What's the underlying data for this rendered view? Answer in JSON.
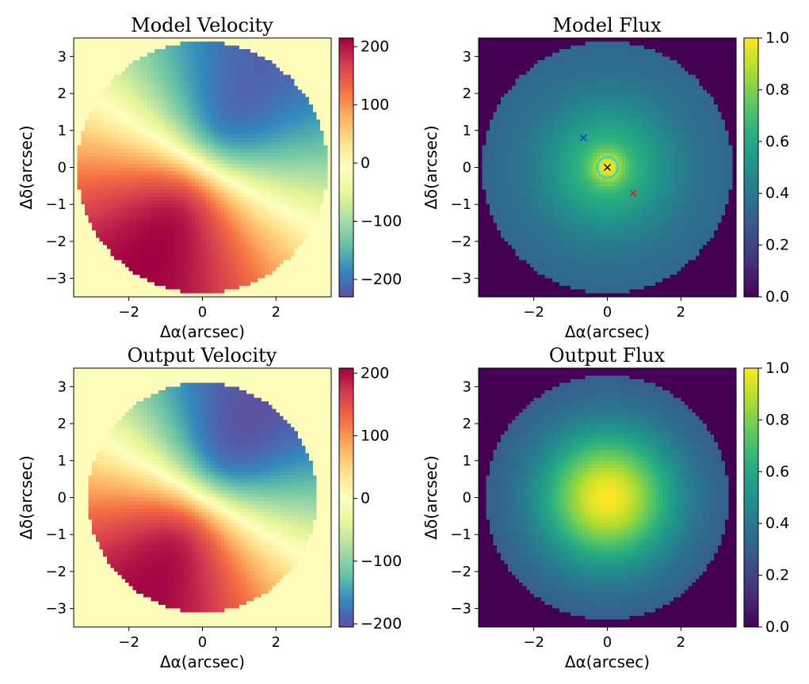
{
  "chart_data": [
    {
      "type": "heatmap",
      "title": "Model Velocity",
      "xlabel": "Δα(arcsec)",
      "ylabel": "Δδ(arcsec)",
      "xlim": [
        -3.5,
        3.5
      ],
      "ylim": [
        -3.5,
        3.5
      ],
      "xticks": [
        "−2",
        "0",
        "2"
      ],
      "yticks": [
        "3",
        "2",
        "1",
        "0",
        "−1",
        "−2",
        "−3"
      ],
      "field": "velocity",
      "disk_radius_arcsec": 3.4,
      "velocity_amplitude": 215,
      "position_angle_deg": 60,
      "colormap": "Spectral_r",
      "colorbar": {
        "min": -230,
        "max": 215,
        "ticks": [
          "200",
          "100",
          "0",
          "−100",
          "−200"
        ],
        "tick_values": [
          200,
          100,
          0,
          -100,
          -200
        ]
      },
      "background_color": "#FEFCBB",
      "markers": []
    },
    {
      "type": "heatmap",
      "title": "Model Flux",
      "xlabel": "Δα(arcsec)",
      "ylabel": "Δδ(arcsec)",
      "xlim": [
        -3.5,
        3.5
      ],
      "ylim": [
        -3.5,
        3.5
      ],
      "xticks": [
        "−2",
        "0",
        "2"
      ],
      "yticks": [
        "3",
        "2",
        "1",
        "0",
        "−1",
        "−2",
        "−3"
      ],
      "field": "flux",
      "disk_radius_arcsec": 3.4,
      "flux_profile": "centrally peaked, falling to ~0.35 at the disk edge",
      "colormap": "viridis",
      "colorbar": {
        "min": 0.0,
        "max": 1.0,
        "ticks": [
          "1.0",
          "0.8",
          "0.6",
          "0.4",
          "0.2",
          "0.0"
        ],
        "tick_values": [
          1.0,
          0.8,
          0.6,
          0.4,
          0.2,
          0.0
        ]
      },
      "background_color": "#440154",
      "markers": [
        {
          "x": -0.65,
          "y": 0.8,
          "symbol": "x",
          "color": "#1f2bff"
        },
        {
          "x": 0.7,
          "y": -0.7,
          "symbol": "x",
          "color": "#e31a1c"
        },
        {
          "x": 0.0,
          "y": 0.0,
          "symbol": "x",
          "color": "#000000"
        },
        {
          "x": 0.0,
          "y": 0.0,
          "symbol": "circle",
          "color": "#17d9e6",
          "radius_arcsec": 0.28
        }
      ]
    },
    {
      "type": "heatmap",
      "title": "Output Velocity",
      "xlabel": "Δα(arcsec)",
      "ylabel": "Δδ(arcsec)",
      "xlim": [
        -3.5,
        3.5
      ],
      "ylim": [
        -3.5,
        3.5
      ],
      "xticks": [
        "−2",
        "0",
        "2"
      ],
      "yticks": [
        "3",
        "2",
        "1",
        "0",
        "−1",
        "−2",
        "−3"
      ],
      "field": "velocity",
      "disk_radius_arcsec": 3.1,
      "velocity_amplitude": 205,
      "position_angle_deg": 60,
      "colormap": "Spectral_r",
      "colorbar": {
        "min": -205,
        "max": 208,
        "ticks": [
          "200",
          "100",
          "0",
          "−100",
          "−200"
        ],
        "tick_values": [
          200,
          100,
          0,
          -100,
          -200
        ]
      },
      "background_color": "#FEFCBB",
      "markers": []
    },
    {
      "type": "heatmap",
      "title": "Output Flux",
      "xlabel": "Δα(arcsec)",
      "ylabel": "Δδ(arcsec)",
      "xlim": [
        -3.5,
        3.5
      ],
      "ylim": [
        -3.5,
        3.5
      ],
      "xticks": [
        "−2",
        "0",
        "2"
      ],
      "yticks": [
        "3",
        "2",
        "1",
        "0",
        "−1",
        "−2",
        "−3"
      ],
      "field": "flux",
      "disk_radius_arcsec": 3.3,
      "flux_profile": "smooth gaussian, peak 1.0 at center, ~0.3 at the disk edge",
      "colormap": "viridis",
      "colorbar": {
        "min": 0.0,
        "max": 1.0,
        "ticks": [
          "1.0",
          "0.8",
          "0.6",
          "0.4",
          "0.2",
          "0.0"
        ],
        "tick_values": [
          1.0,
          0.8,
          0.6,
          0.4,
          0.2,
          0.0
        ]
      },
      "background_color": "#440154",
      "markers": []
    }
  ]
}
